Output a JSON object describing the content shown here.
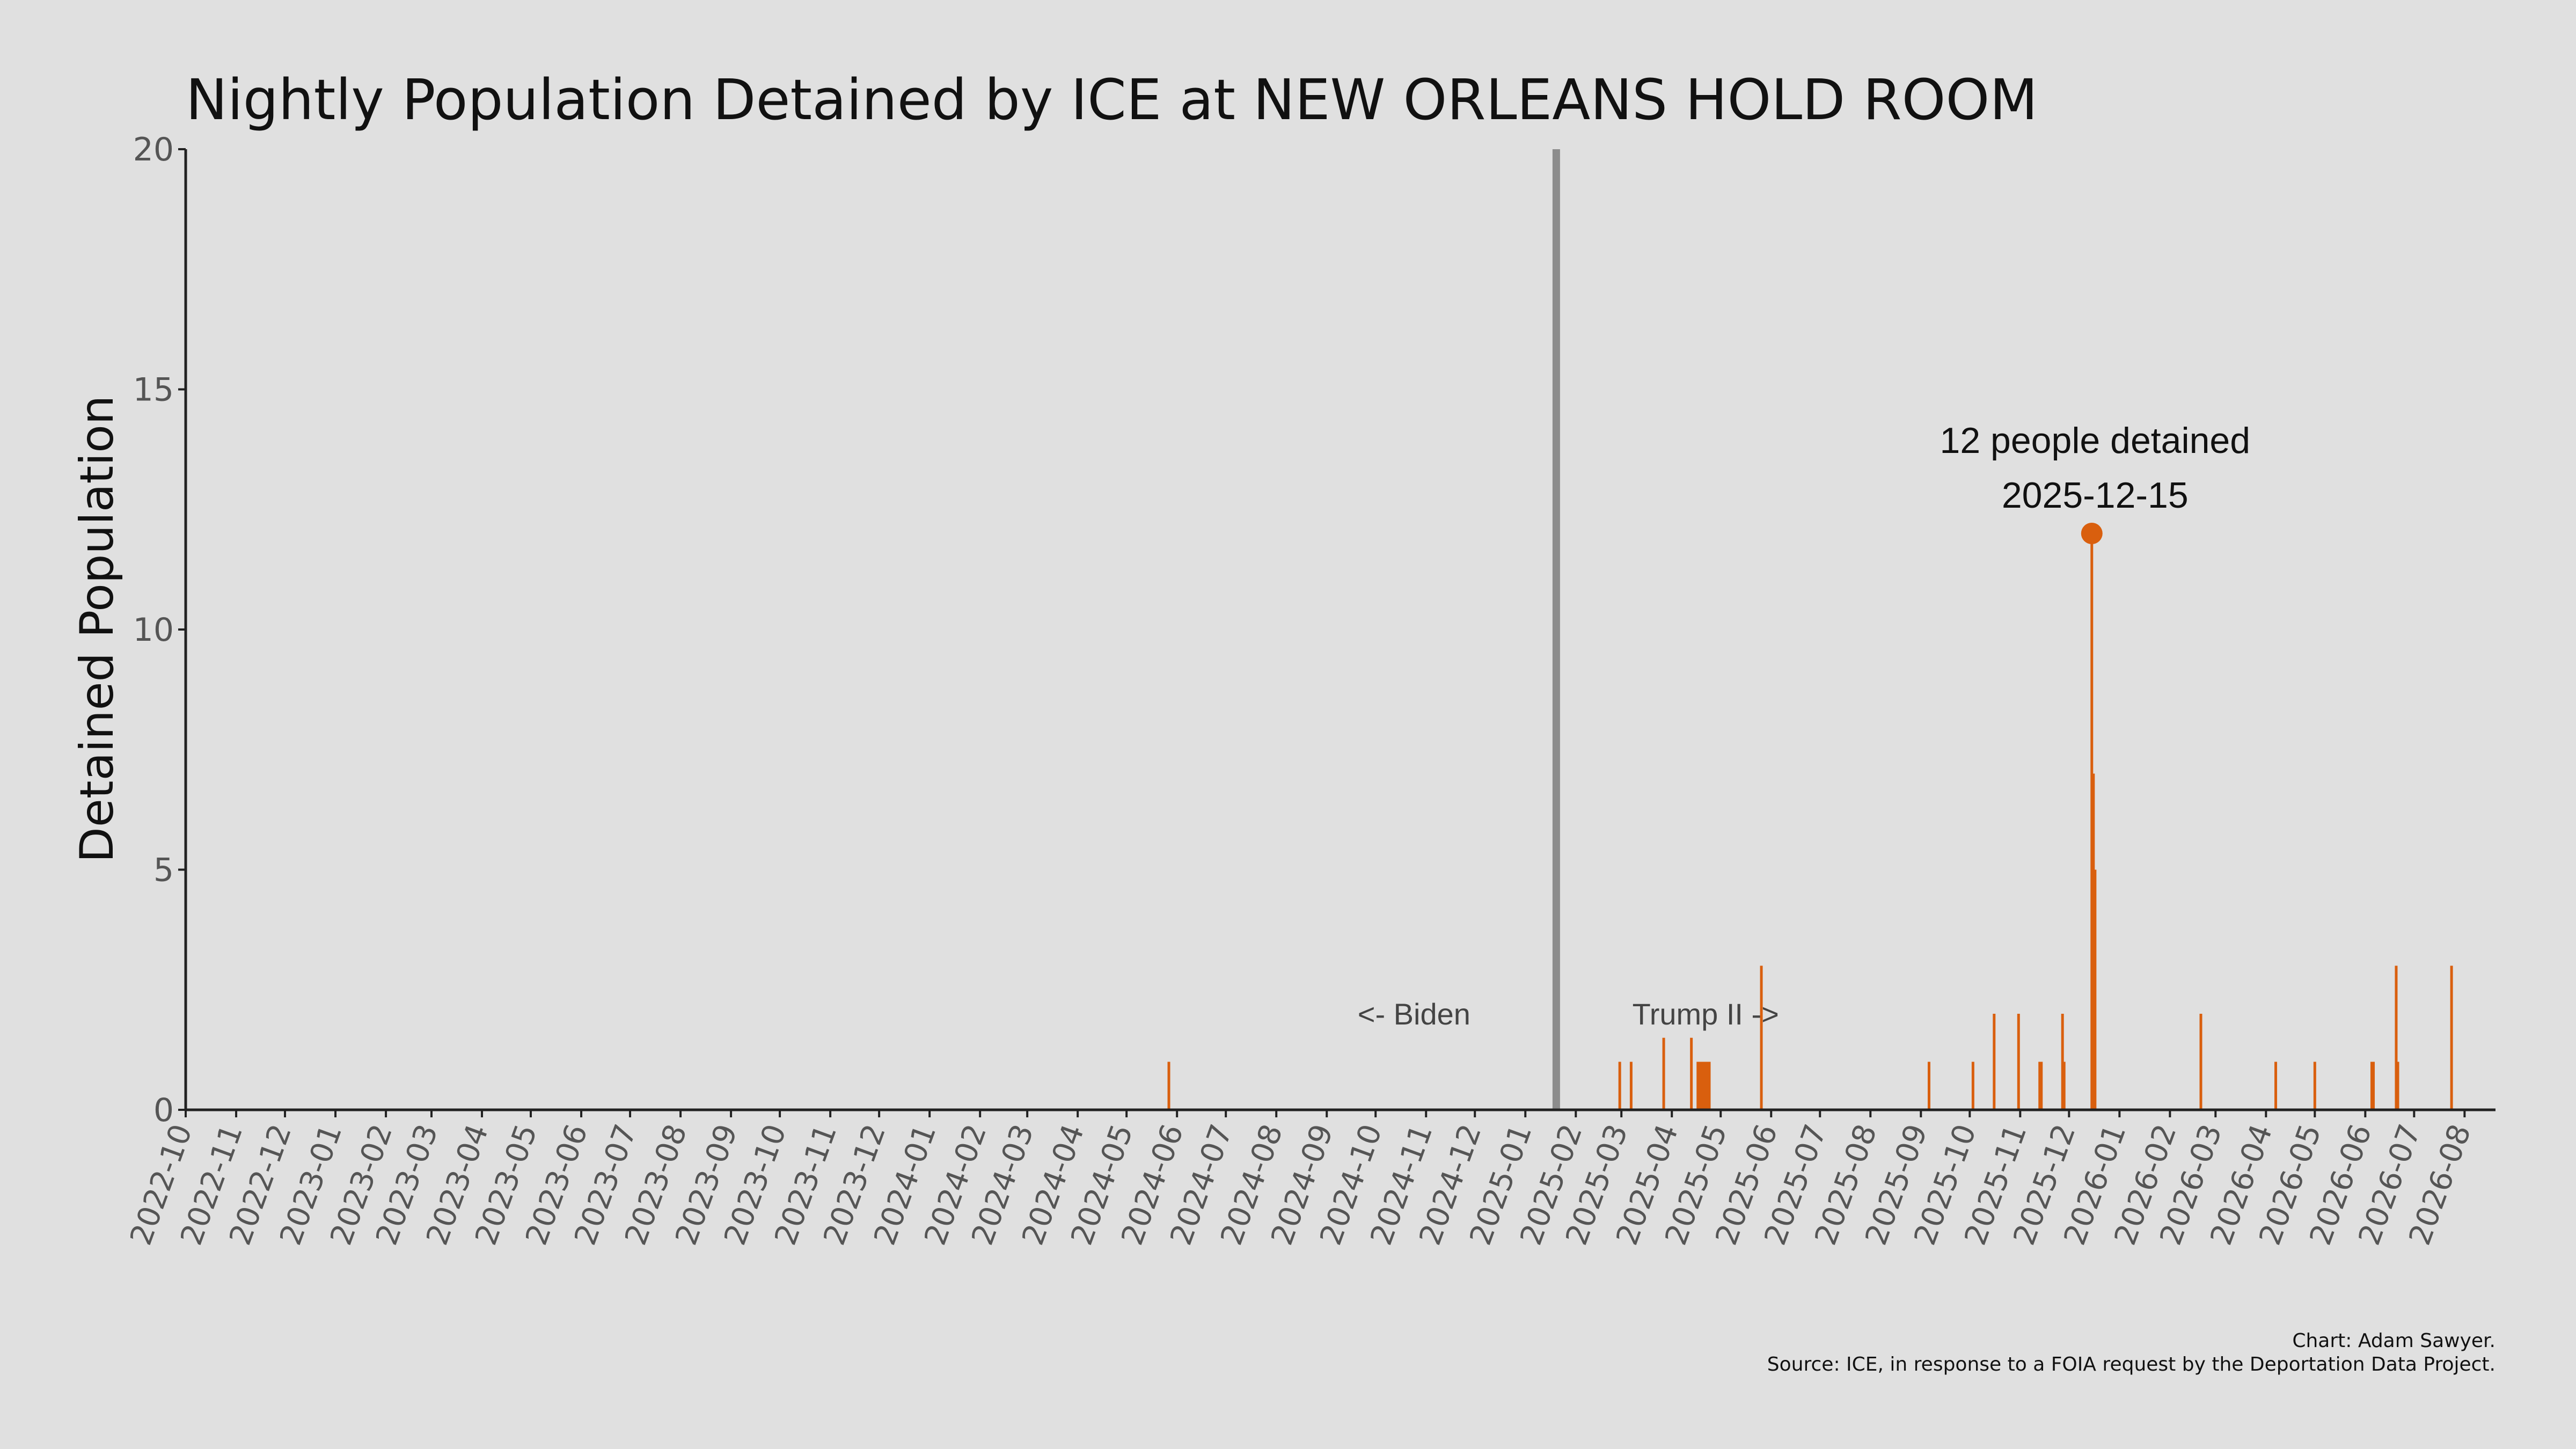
{
  "chart_data": {
    "type": "bar",
    "title": "Nightly Population Detained by ICE at NEW ORLEANS HOLD ROOM",
    "xlabel": "",
    "ylabel": "Detained Population",
    "ylim": [
      0,
      20
    ],
    "yticks": [
      0,
      5,
      10,
      15,
      20
    ],
    "xlim": [
      "2022-10-01",
      "2026-08-20"
    ],
    "xtick_labels": [
      "2022-10",
      "2022-11",
      "2022-12",
      "2023-01",
      "2023-02",
      "2023-03",
      "2023-04",
      "2023-05",
      "2023-06",
      "2023-07",
      "2023-08",
      "2023-09",
      "2023-10",
      "2023-11",
      "2023-12",
      "2024-01",
      "2024-02",
      "2024-03",
      "2024-04",
      "2024-05",
      "2024-06",
      "2024-07",
      "2024-08",
      "2024-09",
      "2024-10",
      "2024-11",
      "2024-12",
      "2025-01",
      "2025-02",
      "2025-03",
      "2025-04",
      "2025-05",
      "2025-06",
      "2025-07",
      "2025-08",
      "2025-09",
      "2025-10",
      "2025-11",
      "2025-12",
      "2026-01",
      "2026-02",
      "2026-03",
      "2026-04",
      "2026-05",
      "2026-06",
      "2026-07",
      "2026-08"
    ],
    "grid": false,
    "bar_color": "#d95f0e",
    "series": [
      {
        "values": [
          {
            "x": "2024-05-27",
            "y": 1
          },
          {
            "x": "2025-02-28",
            "y": 1
          },
          {
            "x": "2025-03-07",
            "y": 1
          },
          {
            "x": "2025-03-27",
            "y": 1.5
          },
          {
            "x": "2025-04-13",
            "y": 1.5
          },
          {
            "x": "2025-04-17",
            "y": 1
          },
          {
            "x": "2025-04-18",
            "y": 1
          },
          {
            "x": "2025-04-19",
            "y": 1
          },
          {
            "x": "2025-04-20",
            "y": 1
          },
          {
            "x": "2025-04-21",
            "y": 1
          },
          {
            "x": "2025-04-22",
            "y": 1
          },
          {
            "x": "2025-04-23",
            "y": 1
          },
          {
            "x": "2025-04-24",
            "y": 1
          },
          {
            "x": "2025-05-26",
            "y": 3
          },
          {
            "x": "2025-09-06",
            "y": 1
          },
          {
            "x": "2025-10-03",
            "y": 1
          },
          {
            "x": "2025-10-16",
            "y": 2
          },
          {
            "x": "2025-10-31",
            "y": 2
          },
          {
            "x": "2025-11-13",
            "y": 1
          },
          {
            "x": "2025-11-14",
            "y": 1
          },
          {
            "x": "2025-11-27",
            "y": 2
          },
          {
            "x": "2025-11-28",
            "y": 1
          },
          {
            "x": "2025-12-15",
            "y": 12
          },
          {
            "x": "2025-12-16",
            "y": 7
          },
          {
            "x": "2025-12-17",
            "y": 5
          },
          {
            "x": "2026-02-20",
            "y": 2
          },
          {
            "x": "2026-04-07",
            "y": 1
          },
          {
            "x": "2026-05-01",
            "y": 1
          },
          {
            "x": "2026-06-05",
            "y": 1
          },
          {
            "x": "2026-06-06",
            "y": 1
          },
          {
            "x": "2026-06-20",
            "y": 3
          },
          {
            "x": "2026-06-21",
            "y": 1
          },
          {
            "x": "2026-07-24",
            "y": 3
          }
        ]
      }
    ],
    "divider": {
      "x": "2025-01-20",
      "color": "#8c8c8c"
    },
    "era_labels": {
      "left": "<- Biden",
      "right": "Trump II ->"
    },
    "peak": {
      "x": "2025-12-15",
      "y": 12,
      "label_line1": "12 people detained",
      "label_line2": "2025-12-15"
    },
    "credit": "Chart: Adam Sawyer.",
    "source": "Source: ICE, in response to a FOIA request by the Deportation Data Project."
  }
}
